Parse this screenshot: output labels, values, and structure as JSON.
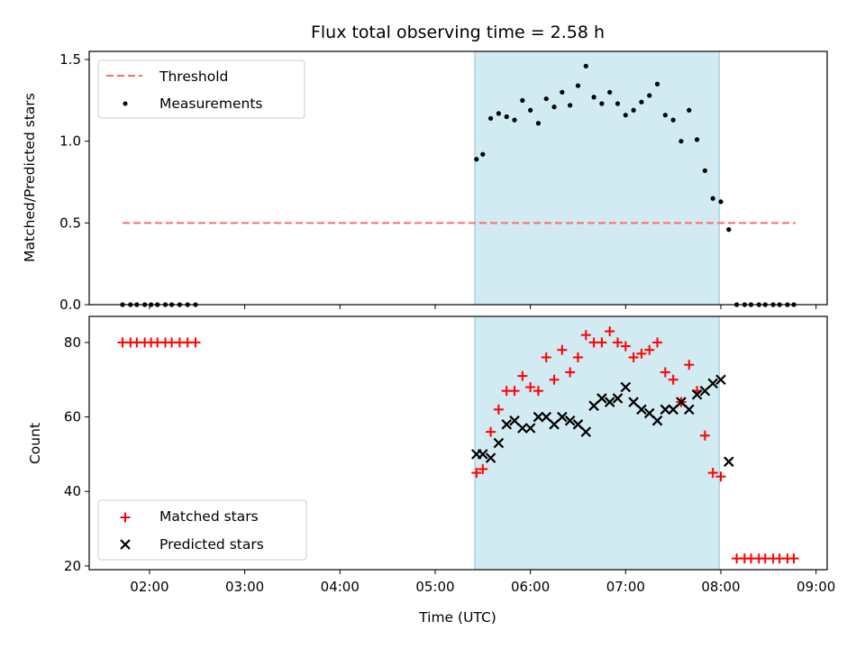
{
  "chart_data": {
    "type": "scatter",
    "title": "Flux total observing time = 2.58 h",
    "xlabel": "Time (UTC)",
    "x_ticks": [
      "02:00",
      "03:00",
      "04:00",
      "05:00",
      "06:00",
      "07:00",
      "08:00",
      "09:00"
    ],
    "x_range": [
      "01:22",
      "09:07"
    ],
    "highlight_span": {
      "start": "05:25",
      "end": "07:59",
      "color": "#add8e6"
    },
    "top_panel": {
      "ylabel": "Matched/Predicted stars",
      "ylim": [
        0,
        1.55
      ],
      "yticks": [
        "0.0",
        "0.5",
        "1.0",
        "1.5"
      ],
      "legend_location": "upper left",
      "threshold": {
        "name": "Threshold",
        "value": 0.5,
        "x_start": "01:43",
        "x_end": "08:47",
        "color": "#ff6b6b",
        "style": "dashed"
      },
      "measurements": {
        "name": "Measurements",
        "color": "#000000",
        "x": [
          "01:43",
          "01:48",
          "01:52",
          "01:57",
          "02:01",
          "02:05",
          "02:10",
          "02:14",
          "02:19",
          "02:24",
          "02:29",
          "05:26",
          "05:30",
          "05:35",
          "05:40",
          "05:45",
          "05:50",
          "05:55",
          "06:00",
          "06:05",
          "06:10",
          "06:15",
          "06:20",
          "06:25",
          "06:30",
          "06:35",
          "06:40",
          "06:45",
          "06:50",
          "06:55",
          "07:00",
          "07:05",
          "07:10",
          "07:15",
          "07:20",
          "07:25",
          "07:30",
          "07:35",
          "07:40",
          "07:45",
          "07:50",
          "07:55",
          "08:00",
          "08:05",
          "08:10",
          "08:15",
          "08:19",
          "08:24",
          "08:28",
          "08:33",
          "08:37",
          "08:42",
          "08:46"
        ],
        "y": [
          0,
          0,
          0,
          0,
          0,
          0,
          0,
          0,
          0,
          0,
          0,
          0.89,
          0.92,
          1.14,
          1.17,
          1.15,
          1.13,
          1.25,
          1.19,
          1.11,
          1.26,
          1.21,
          1.3,
          1.22,
          1.34,
          1.46,
          1.27,
          1.23,
          1.3,
          1.23,
          1.16,
          1.19,
          1.24,
          1.28,
          1.35,
          1.16,
          1.13,
          1.0,
          1.19,
          1.01,
          0.82,
          0.65,
          0.63,
          0.46,
          0,
          0,
          0,
          0,
          0,
          0,
          0,
          0,
          0
        ]
      }
    },
    "bottom_panel": {
      "ylabel": "Count",
      "ylim": [
        19,
        87
      ],
      "yticks": [
        "20",
        "40",
        "60",
        "80"
      ],
      "legend_location": "lower left",
      "series": [
        {
          "name": "Matched stars",
          "marker": "+",
          "color": "#ff0000",
          "x": [
            "01:43",
            "01:48",
            "01:52",
            "01:57",
            "02:01",
            "02:05",
            "02:10",
            "02:14",
            "02:19",
            "02:24",
            "02:29",
            "05:26",
            "05:30",
            "05:35",
            "05:40",
            "05:45",
            "05:50",
            "05:55",
            "06:00",
            "06:05",
            "06:10",
            "06:15",
            "06:20",
            "06:25",
            "06:30",
            "06:35",
            "06:40",
            "06:45",
            "06:50",
            "06:55",
            "07:00",
            "07:05",
            "07:10",
            "07:15",
            "07:20",
            "07:25",
            "07:30",
            "07:35",
            "07:40",
            "07:45",
            "07:50",
            "07:55",
            "08:00",
            "08:10",
            "08:15",
            "08:19",
            "08:24",
            "08:28",
            "08:33",
            "08:37",
            "08:42",
            "08:46"
          ],
          "y": [
            80,
            80,
            80,
            80,
            80,
            80,
            80,
            80,
            80,
            80,
            80,
            45,
            46,
            56,
            62,
            67,
            67,
            71,
            68,
            67,
            76,
            70,
            78,
            72,
            76,
            82,
            80,
            80,
            83,
            80,
            79,
            76,
            77,
            78,
            80,
            72,
            70,
            64,
            74,
            67,
            55,
            45,
            44,
            22,
            22,
            22,
            22,
            22,
            22,
            22,
            22,
            22
          ]
        },
        {
          "name": "Predicted stars",
          "marker": "x",
          "color": "#000000",
          "x": [
            "05:26",
            "05:30",
            "05:35",
            "05:40",
            "05:45",
            "05:50",
            "05:55",
            "06:00",
            "06:05",
            "06:10",
            "06:15",
            "06:20",
            "06:25",
            "06:30",
            "06:35",
            "06:40",
            "06:45",
            "06:50",
            "06:55",
            "07:00",
            "07:05",
            "07:10",
            "07:15",
            "07:20",
            "07:25",
            "07:30",
            "07:35",
            "07:40",
            "07:45",
            "07:50",
            "07:55",
            "08:00",
            "08:05"
          ],
          "y": [
            50,
            50,
            49,
            53,
            58,
            59,
            57,
            57,
            60,
            60,
            58,
            60,
            59,
            58,
            56,
            63,
            65,
            64,
            65,
            68,
            64,
            62,
            61,
            59,
            62,
            62,
            64,
            62,
            66,
            67,
            69,
            70,
            48
          ]
        }
      ]
    }
  }
}
